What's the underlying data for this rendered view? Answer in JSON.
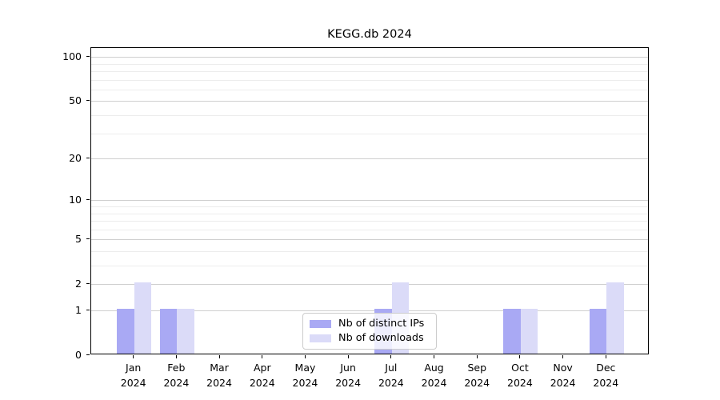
{
  "chart_data": {
    "type": "bar",
    "title": "KEGG.db 2024",
    "categories": [
      {
        "month": "Jan",
        "year": "2024"
      },
      {
        "month": "Feb",
        "year": "2024"
      },
      {
        "month": "Mar",
        "year": "2024"
      },
      {
        "month": "Apr",
        "year": "2024"
      },
      {
        "month": "May",
        "year": "2024"
      },
      {
        "month": "Jun",
        "year": "2024"
      },
      {
        "month": "Jul",
        "year": "2024"
      },
      {
        "month": "Aug",
        "year": "2024"
      },
      {
        "month": "Sep",
        "year": "2024"
      },
      {
        "month": "Oct",
        "year": "2024"
      },
      {
        "month": "Nov",
        "year": "2024"
      },
      {
        "month": "Dec",
        "year": "2024"
      }
    ],
    "series": [
      {
        "name": "Nb of distinct IPs",
        "color": "#a9a9f4",
        "values": [
          1,
          1,
          0,
          0,
          0,
          0,
          1,
          0,
          0,
          1,
          0,
          1
        ]
      },
      {
        "name": "Nb of downloads",
        "color": "#dbdbf8",
        "values": [
          2,
          1,
          0,
          0,
          0,
          0,
          2,
          0,
          0,
          1,
          0,
          2
        ]
      }
    ],
    "y_axis": {
      "scale": "log1p",
      "max": 115,
      "ticks": [
        0,
        1,
        2,
        5,
        10,
        20,
        50,
        100
      ],
      "minor_ticks": [
        3,
        4,
        6,
        7,
        8,
        9,
        30,
        40,
        60,
        70,
        80,
        90
      ]
    },
    "xlabel": "",
    "ylabel": "",
    "grid": true,
    "legend_position": "lower center"
  },
  "colors": {
    "grid_major": "#cfcfcf",
    "grid_minor": "#ececec",
    "axis": "#000000",
    "legend_border": "#cccccc"
  }
}
